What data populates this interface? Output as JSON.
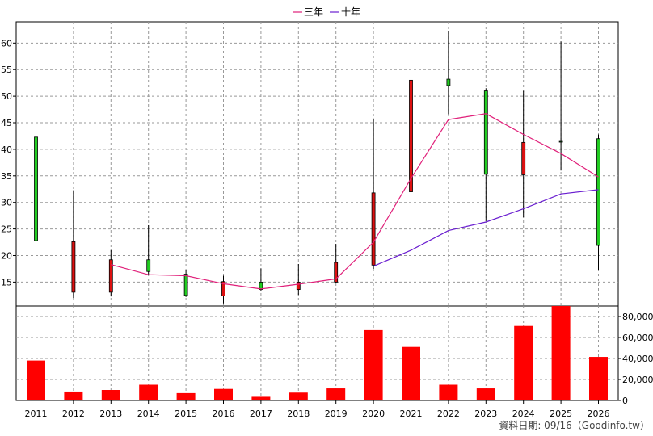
{
  "chart_data": [
    {
      "type": "candlestick",
      "ylim": [
        10.5,
        64
      ],
      "yticks": [
        15,
        20,
        25,
        30,
        35,
        40,
        45,
        50,
        55,
        60
      ],
      "categories": [
        "2011",
        "2012",
        "2013",
        "2014",
        "2015",
        "2016",
        "2017",
        "2018",
        "2019",
        "2020",
        "2021",
        "2022",
        "2023",
        "2024",
        "2025",
        "2026"
      ],
      "candles": [
        {
          "open": 22.8,
          "close": 42.3,
          "high": 58.0,
          "low": 20.0
        },
        {
          "open": 22.6,
          "close": 13.1,
          "high": 32.3,
          "low": 12.0
        },
        {
          "open": 19.2,
          "close": 13.1,
          "high": 21.0,
          "low": 12.3
        },
        {
          "open": 17.0,
          "close": 19.2,
          "high": 25.7,
          "low": 16.4
        },
        {
          "open": 12.5,
          "close": 16.5,
          "high": 17.3,
          "low": 12.2
        },
        {
          "open": 15.1,
          "close": 12.4,
          "high": 16.2,
          "low": 11.0
        },
        {
          "open": 13.6,
          "close": 15.0,
          "high": 17.6,
          "low": 13.4
        },
        {
          "open": 15.0,
          "close": 13.6,
          "high": 18.4,
          "low": 12.6
        },
        {
          "open": 18.7,
          "close": 15.0,
          "high": 22.2,
          "low": 14.9
        },
        {
          "open": 31.8,
          "close": 18.2,
          "high": 45.8,
          "low": 17.5
        },
        {
          "open": 53.0,
          "close": 32.0,
          "high": 63.0,
          "low": 27.2
        },
        {
          "open": 52.0,
          "close": 53.2,
          "high": 62.2,
          "low": 46.6
        },
        {
          "open": 35.3,
          "close": 51.0,
          "high": 51.5,
          "low": 26.5
        },
        {
          "open": 41.3,
          "close": 35.2,
          "high": 51.0,
          "low": 27.2
        },
        {
          "open": 41.5,
          "close": 41.5,
          "high": 60.3,
          "low": 36.0
        },
        {
          "open": 21.9,
          "close": 42.0,
          "high": 42.8,
          "low": 17.3
        }
      ],
      "series": [
        {
          "name": "三年",
          "color": "#e0207a",
          "values": [
            null,
            null,
            18.3,
            16.4,
            16.2,
            14.7,
            13.7,
            14.6,
            15.6,
            22.5,
            34.5,
            45.6,
            46.7,
            42.8,
            39.2,
            34.8
          ]
        },
        {
          "name": "十年",
          "color": "#6a1ed0",
          "values": [
            null,
            null,
            null,
            null,
            null,
            null,
            null,
            null,
            null,
            18.0,
            21.0,
            24.7,
            26.3,
            28.8,
            31.6,
            32.4
          ]
        }
      ],
      "up_color": "#22cc22",
      "down_color": "#dd1111"
    },
    {
      "type": "bar",
      "ylim": [
        0,
        90000
      ],
      "yticks": [
        0,
        20000,
        40000,
        60000,
        80000
      ],
      "ytick_labels": [
        "0",
        "20,000",
        "40,000",
        "60,000",
        "80,000"
      ],
      "categories": [
        "2011",
        "2012",
        "2013",
        "2014",
        "2015",
        "2016",
        "2017",
        "2018",
        "2019",
        "2020",
        "2021",
        "2022",
        "2023",
        "2024",
        "2025",
        "2026"
      ],
      "values": [
        38000,
        8500,
        10000,
        15000,
        7000,
        11000,
        3500,
        7500,
        11500,
        67000,
        51000,
        15000,
        11500,
        71000,
        90000,
        41500
      ],
      "color": "#ff0000"
    }
  ],
  "legend": [
    {
      "label": "三年",
      "color": "#e0207a"
    },
    {
      "label": "十年",
      "color": "#6a1ed0"
    }
  ],
  "footer": "資料日期: 09/16（Goodinfo.tw）"
}
